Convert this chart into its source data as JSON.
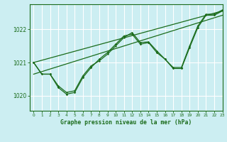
{
  "bg_color": "#cceef2",
  "grid_color": "#ffffff",
  "line_color": "#1a6b1a",
  "title": "Graphe pression niveau de la mer (hPa)",
  "xlim": [
    -0.5,
    23
  ],
  "ylim": [
    1019.55,
    1022.75
  ],
  "yticks": [
    1020,
    1021,
    1022
  ],
  "xticks": [
    0,
    1,
    2,
    3,
    4,
    5,
    6,
    7,
    8,
    9,
    10,
    11,
    12,
    13,
    14,
    15,
    16,
    17,
    18,
    19,
    20,
    21,
    22,
    23
  ],
  "line1": [
    1021.0,
    1020.65,
    1020.65,
    1020.25,
    1020.05,
    1020.1,
    1020.55,
    1020.85,
    1021.1,
    1021.3,
    1021.55,
    1021.8,
    1021.85,
    1021.55,
    1021.6,
    1021.3,
    1021.1,
    1020.82,
    1020.82,
    1021.45,
    1022.05,
    1022.42,
    1022.42,
    1022.55
  ],
  "line2": [
    1021.0,
    1020.65,
    1020.65,
    1020.3,
    1020.1,
    1020.15,
    1020.6,
    1020.9,
    1021.05,
    1021.25,
    1021.5,
    1021.75,
    1021.9,
    1021.6,
    1021.62,
    1021.35,
    1021.1,
    1020.85,
    1020.85,
    1021.5,
    1022.1,
    1022.45,
    1022.45,
    1022.58
  ],
  "line3_x": [
    0,
    23
  ],
  "line3_y": [
    1020.65,
    1022.42
  ],
  "line4_x": [
    0,
    23
  ],
  "line4_y": [
    1021.0,
    1022.55
  ]
}
